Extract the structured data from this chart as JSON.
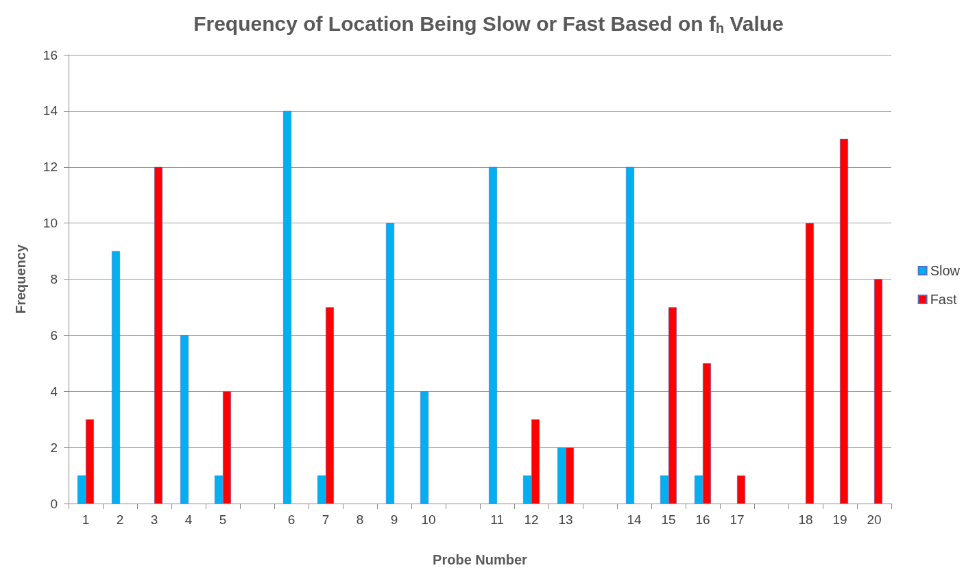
{
  "chart_data": {
    "type": "bar",
    "title": "Frequency of Location Being Slow or Fast Based on f$_{h}$ Value",
    "xlabel": "Probe Number",
    "ylabel": "Frequency",
    "categories": [
      "1",
      "2",
      "3",
      "4",
      "5",
      null,
      "6",
      "7",
      "8",
      "9",
      "10",
      null,
      "11",
      "12",
      "13",
      null,
      "14",
      "15",
      "16",
      "17",
      null,
      "18",
      "19",
      "20"
    ],
    "series": [
      {
        "name": "Slow",
        "color": "#00b0f0",
        "values": [
          1,
          9,
          0,
          6,
          1,
          0,
          14,
          1,
          0,
          10,
          4,
          0,
          12,
          1,
          2,
          0,
          12,
          1,
          1,
          0,
          0,
          0,
          0,
          0
        ]
      },
      {
        "name": "Fast",
        "color": "#ff0000",
        "values": [
          3,
          0,
          12,
          0,
          4,
          0,
          0,
          7,
          0,
          0,
          0,
          0,
          0,
          3,
          2,
          0,
          0,
          7,
          5,
          1,
          0,
          10,
          13,
          8
        ]
      }
    ],
    "ylim": [
      0,
      16
    ],
    "yticks": [
      0,
      2,
      4,
      6,
      8,
      10,
      12,
      14,
      16
    ],
    "grid": "y",
    "legend": "right"
  }
}
